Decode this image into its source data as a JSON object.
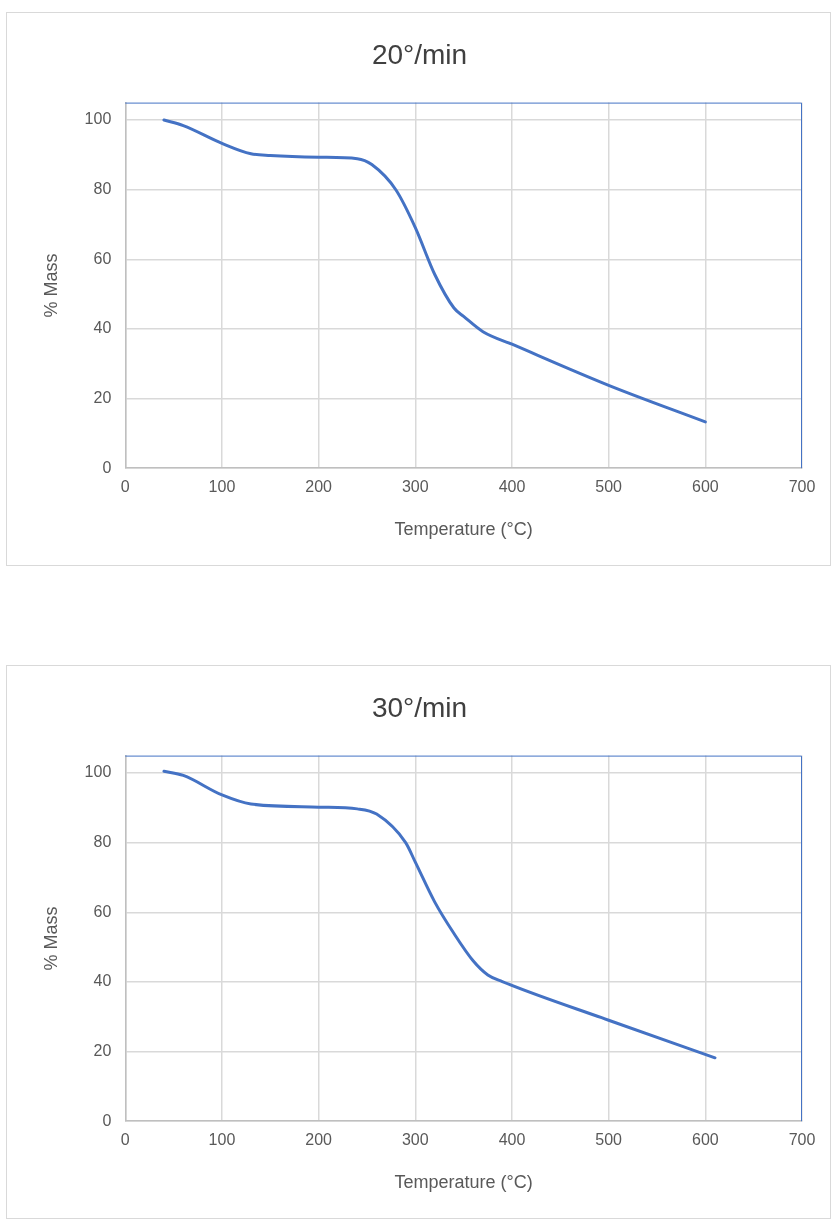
{
  "chart_data": [
    {
      "type": "line",
      "title": "20°/min",
      "xlabel": "Temperature (°C)",
      "ylabel": "% Mass",
      "xlim": [
        0,
        700
      ],
      "xticks": [
        0,
        100,
        200,
        300,
        400,
        500,
        600,
        700
      ],
      "ylim": [
        0,
        105
      ],
      "yticks": [
        0,
        20,
        40,
        60,
        80,
        100
      ],
      "grid": true,
      "marker": "none",
      "series": [
        {
          "color": "#4472c4",
          "x": [
            40,
            60,
            100,
            130,
            150,
            200,
            240,
            255,
            280,
            300,
            320,
            340,
            350,
            370,
            400,
            500,
            600
          ],
          "values": [
            100,
            98.4,
            93.3,
            90.3,
            89.8,
            89.3,
            88.9,
            87.2,
            79.9,
            69.1,
            55.7,
            46,
            43.6,
            39.2,
            35.6,
            23.8,
            13.3
          ]
        }
      ]
    },
    {
      "type": "line",
      "title": "30°/min",
      "xlabel": "Temperature (°C)",
      "ylabel": "% Mass",
      "xlim": [
        0,
        700
      ],
      "xticks": [
        0,
        100,
        200,
        300,
        400,
        500,
        600,
        700
      ],
      "ylim": [
        0,
        105
      ],
      "yticks": [
        0,
        20,
        40,
        60,
        80,
        100
      ],
      "grid": true,
      "marker": "none",
      "series": [
        {
          "color": "#4472c4",
          "x": [
            40,
            60,
            100,
            130,
            200,
            240,
            260,
            290,
            300,
            320,
            340,
            360,
            375,
            390,
            500,
            610
          ],
          "values": [
            100.5,
            99.3,
            93.7,
            91.1,
            90.2,
            89.7,
            88.2,
            80,
            74.4,
            63,
            53.9,
            46,
            42,
            40.1,
            29,
            18.2
          ]
        }
      ]
    }
  ]
}
